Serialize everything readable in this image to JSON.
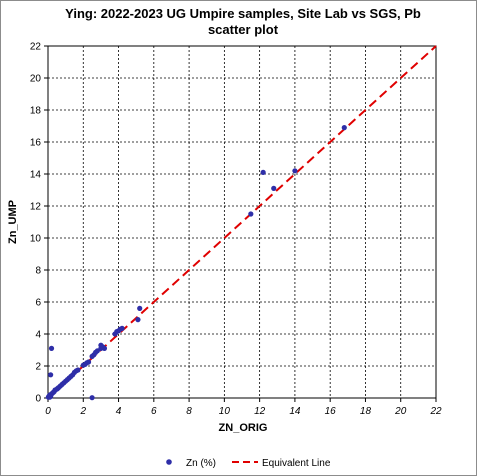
{
  "chart_data": {
    "type": "scatter",
    "title_line1": "Ying: 2022-2023 UG Umpire samples, Site Lab vs SGS, Pb",
    "title_line2": "scatter plot",
    "xlabel": "ZN_ORIG",
    "ylabel": "Zn_UMP",
    "xlim": [
      0,
      22
    ],
    "ylim": [
      0,
      22
    ],
    "xticks": [
      "0",
      "2",
      "4",
      "6",
      "8",
      "10",
      "12",
      "14",
      "16",
      "18",
      "20",
      "22"
    ],
    "yticks": [
      "0",
      "2",
      "4",
      "6",
      "8",
      "10",
      "12",
      "14",
      "16",
      "18",
      "20",
      "22"
    ],
    "grid": true,
    "legend_position": "bottom",
    "series": [
      {
        "name": "Zn (%)",
        "color": "#2e2ea8",
        "marker": "circle",
        "points": [
          [
            0.02,
            0.05
          ],
          [
            0.05,
            0.1
          ],
          [
            0.08,
            0.15
          ],
          [
            0.1,
            0.05
          ],
          [
            0.12,
            0.2
          ],
          [
            0.15,
            0.1
          ],
          [
            0.2,
            0.25
          ],
          [
            0.25,
            0.3
          ],
          [
            0.3,
            0.35
          ],
          [
            0.35,
            0.4
          ],
          [
            0.4,
            0.5
          ],
          [
            0.5,
            0.55
          ],
          [
            0.55,
            0.6
          ],
          [
            0.6,
            0.65
          ],
          [
            0.7,
            0.75
          ],
          [
            0.8,
            0.85
          ],
          [
            0.9,
            0.95
          ],
          [
            1.0,
            1.05
          ],
          [
            1.1,
            1.15
          ],
          [
            1.2,
            1.25
          ],
          [
            1.3,
            1.35
          ],
          [
            1.4,
            1.45
          ],
          [
            1.5,
            1.6
          ],
          [
            1.6,
            1.7
          ],
          [
            1.7,
            1.75
          ],
          [
            2.0,
            2.05
          ],
          [
            2.1,
            2.1
          ],
          [
            2.2,
            2.2
          ],
          [
            2.3,
            2.25
          ],
          [
            2.5,
            2.6
          ],
          [
            2.6,
            2.7
          ],
          [
            2.7,
            2.85
          ],
          [
            2.8,
            2.95
          ],
          [
            3.0,
            3.1
          ],
          [
            3.0,
            3.3
          ],
          [
            3.1,
            3.2
          ],
          [
            3.2,
            3.1
          ],
          [
            3.8,
            4.0
          ],
          [
            3.9,
            4.15
          ],
          [
            4.0,
            4.2
          ],
          [
            4.1,
            4.3
          ],
          [
            4.2,
            4.35
          ],
          [
            5.1,
            4.9
          ],
          [
            5.2,
            5.6
          ],
          [
            0.2,
            3.1
          ],
          [
            0.15,
            1.45
          ],
          [
            2.5,
            0.02
          ],
          [
            11.5,
            11.5
          ],
          [
            12.2,
            14.1
          ],
          [
            12.8,
            13.1
          ],
          [
            14.0,
            14.2
          ],
          [
            16.8,
            16.9
          ]
        ]
      },
      {
        "name": "Equivalent Line",
        "color": "#e00000",
        "line_style": "dashed",
        "x": [
          0,
          22
        ],
        "y": [
          0,
          22
        ]
      }
    ]
  }
}
